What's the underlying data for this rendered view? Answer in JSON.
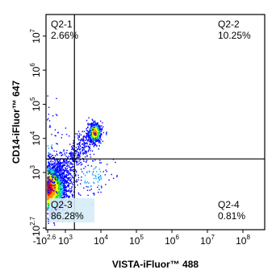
{
  "chart_data": {
    "type": "scatter",
    "style": "density-colored flow cytometry dot plot with quadrant gates",
    "xlabel": "VISTA-iFluor™ 488",
    "ylabel": "CD14-iFluor™ 647",
    "x_ticks": [
      {
        "base": "-10",
        "exp": "2.6"
      },
      {
        "base": "10",
        "exp": "3"
      },
      {
        "base": "10",
        "exp": "4"
      },
      {
        "base": "10",
        "exp": "5"
      },
      {
        "base": "10",
        "exp": "6"
      },
      {
        "base": "10",
        "exp": "7"
      },
      {
        "base": "10",
        "exp": "8"
      }
    ],
    "y_ticks": [
      {
        "base": "-10",
        "exp": "2.7"
      },
      {
        "base": "10",
        "exp": "3"
      },
      {
        "base": "10",
        "exp": "4"
      },
      {
        "base": "10",
        "exp": "5"
      },
      {
        "base": "10",
        "exp": "6"
      },
      {
        "base": "10",
        "exp": "7"
      }
    ],
    "x_gate": 1800,
    "y_gate": 2500,
    "quadrants": [
      {
        "name": "Q2-1",
        "percent": "2.66%",
        "position": "top-left"
      },
      {
        "name": "Q2-2",
        "percent": "10.25%",
        "position": "top-right"
      },
      {
        "name": "Q2-3",
        "percent": "86.28%",
        "position": "bottom-left"
      },
      {
        "name": "Q2-4",
        "percent": "0.81%",
        "position": "bottom-right"
      }
    ],
    "populations": [
      {
        "center": [
          400,
          600
        ],
        "share": 0.8628,
        "color": "high density red-yellow-green core"
      },
      {
        "center": [
          6500,
          15000
        ],
        "share": 0.1025,
        "color": "high density yellow-green core"
      },
      {
        "center": [
          300,
          8000
        ],
        "share": 0.0266,
        "color": "blue"
      },
      {
        "center": [
          6000,
          900
        ],
        "share": 0.0081,
        "color": "blue"
      }
    ],
    "density_colors": [
      "#0000ff",
      "#00a0ff",
      "#00e0a0",
      "#40e000",
      "#ffff00",
      "#ff9000",
      "#ff0000"
    ],
    "grid": false,
    "legend": "none"
  }
}
